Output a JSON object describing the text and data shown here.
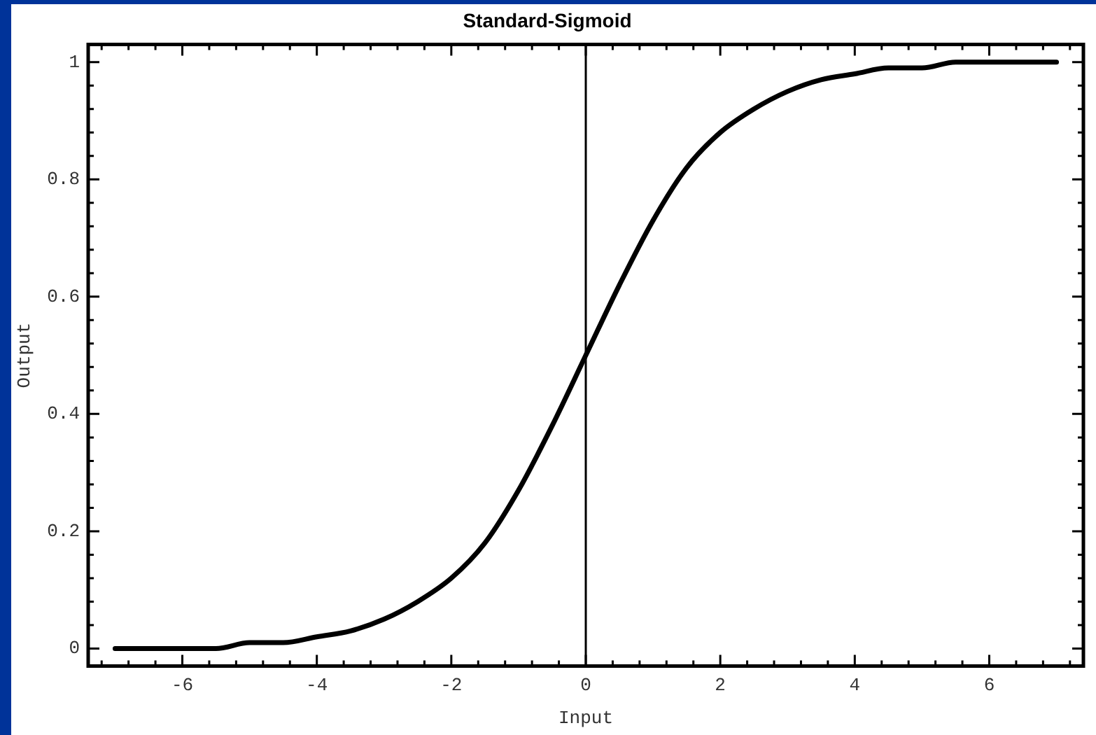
{
  "chart_data": {
    "type": "line",
    "title": "Standard-Sigmoid",
    "xlabel": "Input",
    "ylabel": "Output",
    "series": [
      {
        "color": "#000000",
        "x": [
          -7,
          -6.5,
          -6,
          -5.5,
          -5,
          -4.5,
          -4,
          -3.5,
          -3,
          -2.5,
          -2,
          -1.5,
          -1,
          -0.5,
          0,
          0.5,
          1,
          1.5,
          2,
          2.5,
          3,
          3.5,
          4,
          4.5,
          5,
          5.5,
          6,
          6.5,
          7
        ],
        "values": [
          0,
          0,
          0,
          0,
          0.01,
          0.01,
          0.02,
          0.03,
          0.05,
          0.08,
          0.12,
          0.18,
          0.27,
          0.38,
          0.5,
          0.62,
          0.73,
          0.82,
          0.88,
          0.92,
          0.95,
          0.97,
          0.98,
          0.99,
          0.99,
          1,
          1,
          1,
          1
        ]
      }
    ],
    "xlim": [
      -7.4,
      7.4
    ],
    "ylim": [
      -0.03,
      1.03
    ],
    "xticks": [
      {
        "value": -7.2,
        "label": null
      },
      {
        "value": -6.8,
        "label": null
      },
      {
        "value": -6.4,
        "label": null
      },
      -6,
      {
        "value": -5.6,
        "label": null
      },
      {
        "value": -5.2,
        "label": null
      },
      {
        "value": -4.8,
        "label": null
      },
      {
        "value": -4.4,
        "label": null
      },
      -4,
      {
        "value": -3.6,
        "label": null
      },
      {
        "value": -3.2,
        "label": null
      },
      {
        "value": -2.8,
        "label": null
      },
      {
        "value": -2.4,
        "label": null
      },
      -2,
      {
        "value": -1.6,
        "label": null
      },
      {
        "value": -1.2,
        "label": null
      },
      {
        "value": -0.8,
        "label": null
      },
      {
        "value": -0.4,
        "label": null
      },
      0,
      {
        "value": 0.4,
        "label": null
      },
      {
        "value": 0.8,
        "label": null
      },
      {
        "value": 1.2,
        "label": null
      },
      {
        "value": 1.6,
        "label": null
      },
      2,
      {
        "value": 2.4,
        "label": null
      },
      {
        "value": 2.8,
        "label": null
      },
      {
        "value": 3.2,
        "label": null
      },
      {
        "value": 3.6,
        "label": null
      },
      4,
      {
        "value": 4.4,
        "label": null
      },
      {
        "value": 4.8,
        "label": null
      },
      {
        "value": 5.2,
        "label": null
      },
      {
        "value": 5.6,
        "label": null
      },
      6,
      {
        "value": 6.4,
        "label": null
      },
      {
        "value": 6.8,
        "label": null
      },
      {
        "value": 7.2,
        "label": null
      }
    ],
    "yticks": [
      0,
      {
        "value": 0.04,
        "label": null
      },
      {
        "value": 0.08,
        "label": null
      },
      {
        "value": 0.12,
        "label": null
      },
      {
        "value": 0.16,
        "label": null
      },
      {
        "value": 0.2,
        "label": "0.2"
      },
      {
        "value": 0.24,
        "label": null
      },
      {
        "value": 0.28,
        "label": null
      },
      {
        "value": 0.32,
        "label": null
      },
      {
        "value": 0.36,
        "label": null
      },
      {
        "value": 0.4,
        "label": "0.4"
      },
      {
        "value": 0.44,
        "label": null
      },
      {
        "value": 0.48,
        "label": null
      },
      {
        "value": 0.52,
        "label": null
      },
      {
        "value": 0.56,
        "label": null
      },
      {
        "value": 0.6,
        "label": "0.6"
      },
      {
        "value": 0.64,
        "label": null
      },
      {
        "value": 0.68,
        "label": null
      },
      {
        "value": 0.72,
        "label": null
      },
      {
        "value": 0.76,
        "label": null
      },
      {
        "value": 0.8,
        "label": "0.8"
      },
      {
        "value": 0.84,
        "label": null
      },
      {
        "value": 0.88,
        "label": null
      },
      {
        "value": 0.92,
        "label": null
      },
      {
        "value": 0.96,
        "label": null
      },
      1
    ],
    "ref_lines": [
      {
        "axis": "x",
        "value": 0,
        "color": "#000000"
      }
    ],
    "grid": false,
    "legend": false,
    "marker": "none",
    "line_style": "solid"
  }
}
